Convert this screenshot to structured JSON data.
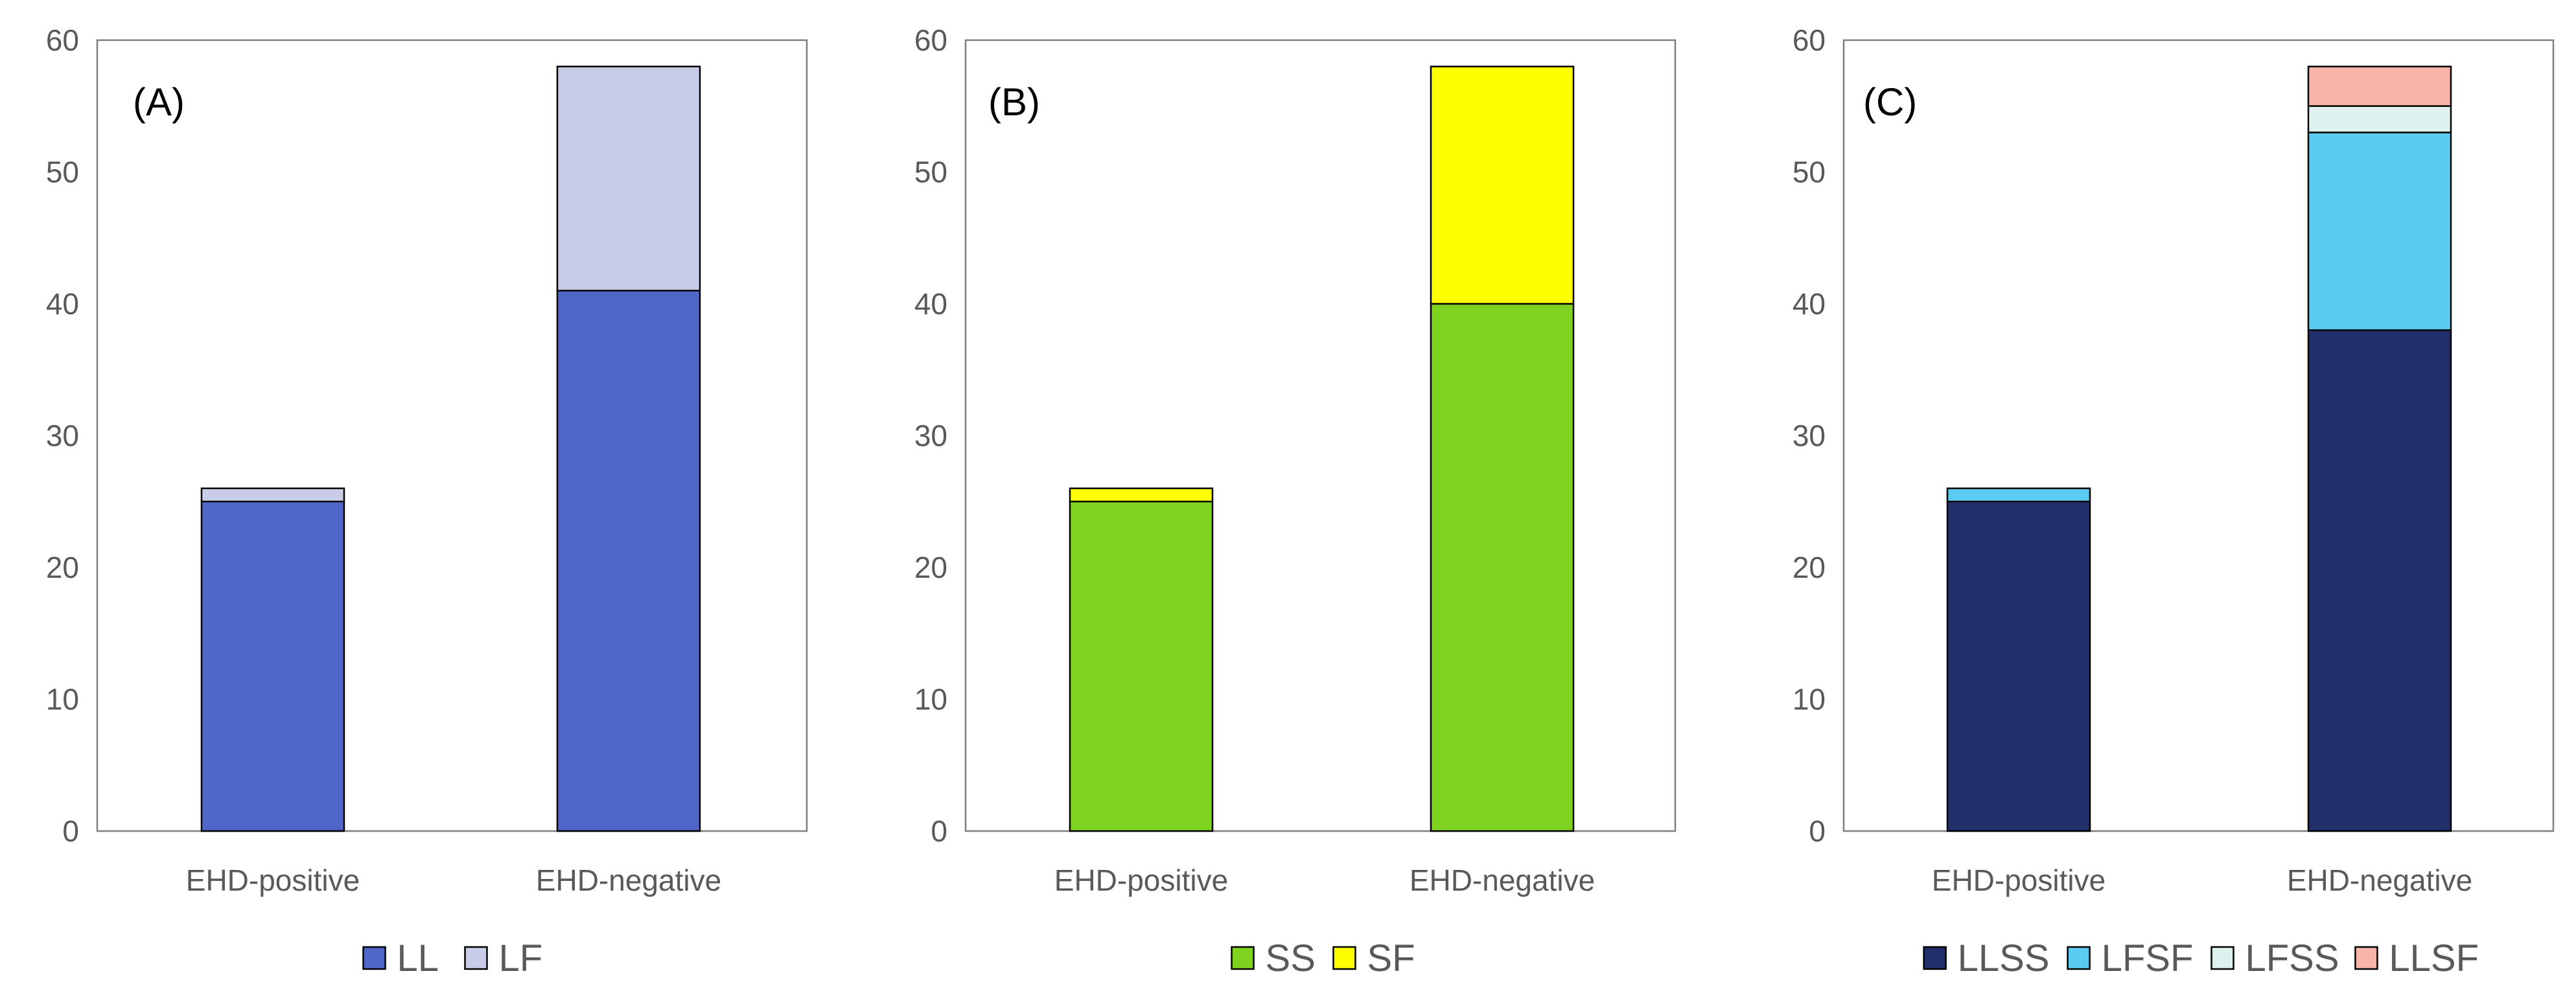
{
  "chart_data": [
    {
      "type": "bar",
      "stacked": true,
      "panel_label": "(A)",
      "categories": [
        "EHD-positive",
        "EHD-negative"
      ],
      "series": [
        {
          "name": "LL",
          "values": [
            25,
            41
          ],
          "color": "#4F67C8"
        },
        {
          "name": "LF",
          "values": [
            1,
            17
          ],
          "color": "#C8CCE6"
        }
      ],
      "ylim": [
        0,
        60
      ],
      "yticks": [
        0,
        10,
        20,
        30,
        40,
        50,
        60
      ],
      "legend": "bottom"
    },
    {
      "type": "bar",
      "stacked": true,
      "panel_label": "(B)",
      "categories": [
        "EHD-positive",
        "EHD-negative"
      ],
      "series": [
        {
          "name": "SS",
          "values": [
            25,
            40
          ],
          "color": "#7ED321"
        },
        {
          "name": "SF",
          "values": [
            1,
            18
          ],
          "color": "#FFFF00"
        }
      ],
      "ylim": [
        0,
        60
      ],
      "yticks": [
        0,
        10,
        20,
        30,
        40,
        50,
        60
      ],
      "legend": "bottom"
    },
    {
      "type": "bar",
      "stacked": true,
      "panel_label": "(C)",
      "categories": [
        "EHD-positive",
        "EHD-negative"
      ],
      "series": [
        {
          "name": "LLSS",
          "values": [
            25,
            38
          ],
          "color": "#212F6A"
        },
        {
          "name": "LFSF",
          "values": [
            1,
            15
          ],
          "color": "#5BCBF2"
        },
        {
          "name": "LFSS",
          "values": [
            0,
            2
          ],
          "color": "#DDF2EE"
        },
        {
          "name": "LLSF",
          "values": [
            0,
            3
          ],
          "color": "#F8B4A8"
        }
      ],
      "ylim": [
        0,
        60
      ],
      "yticks": [
        0,
        10,
        20,
        30,
        40,
        50,
        60
      ],
      "legend": "bottom"
    }
  ]
}
